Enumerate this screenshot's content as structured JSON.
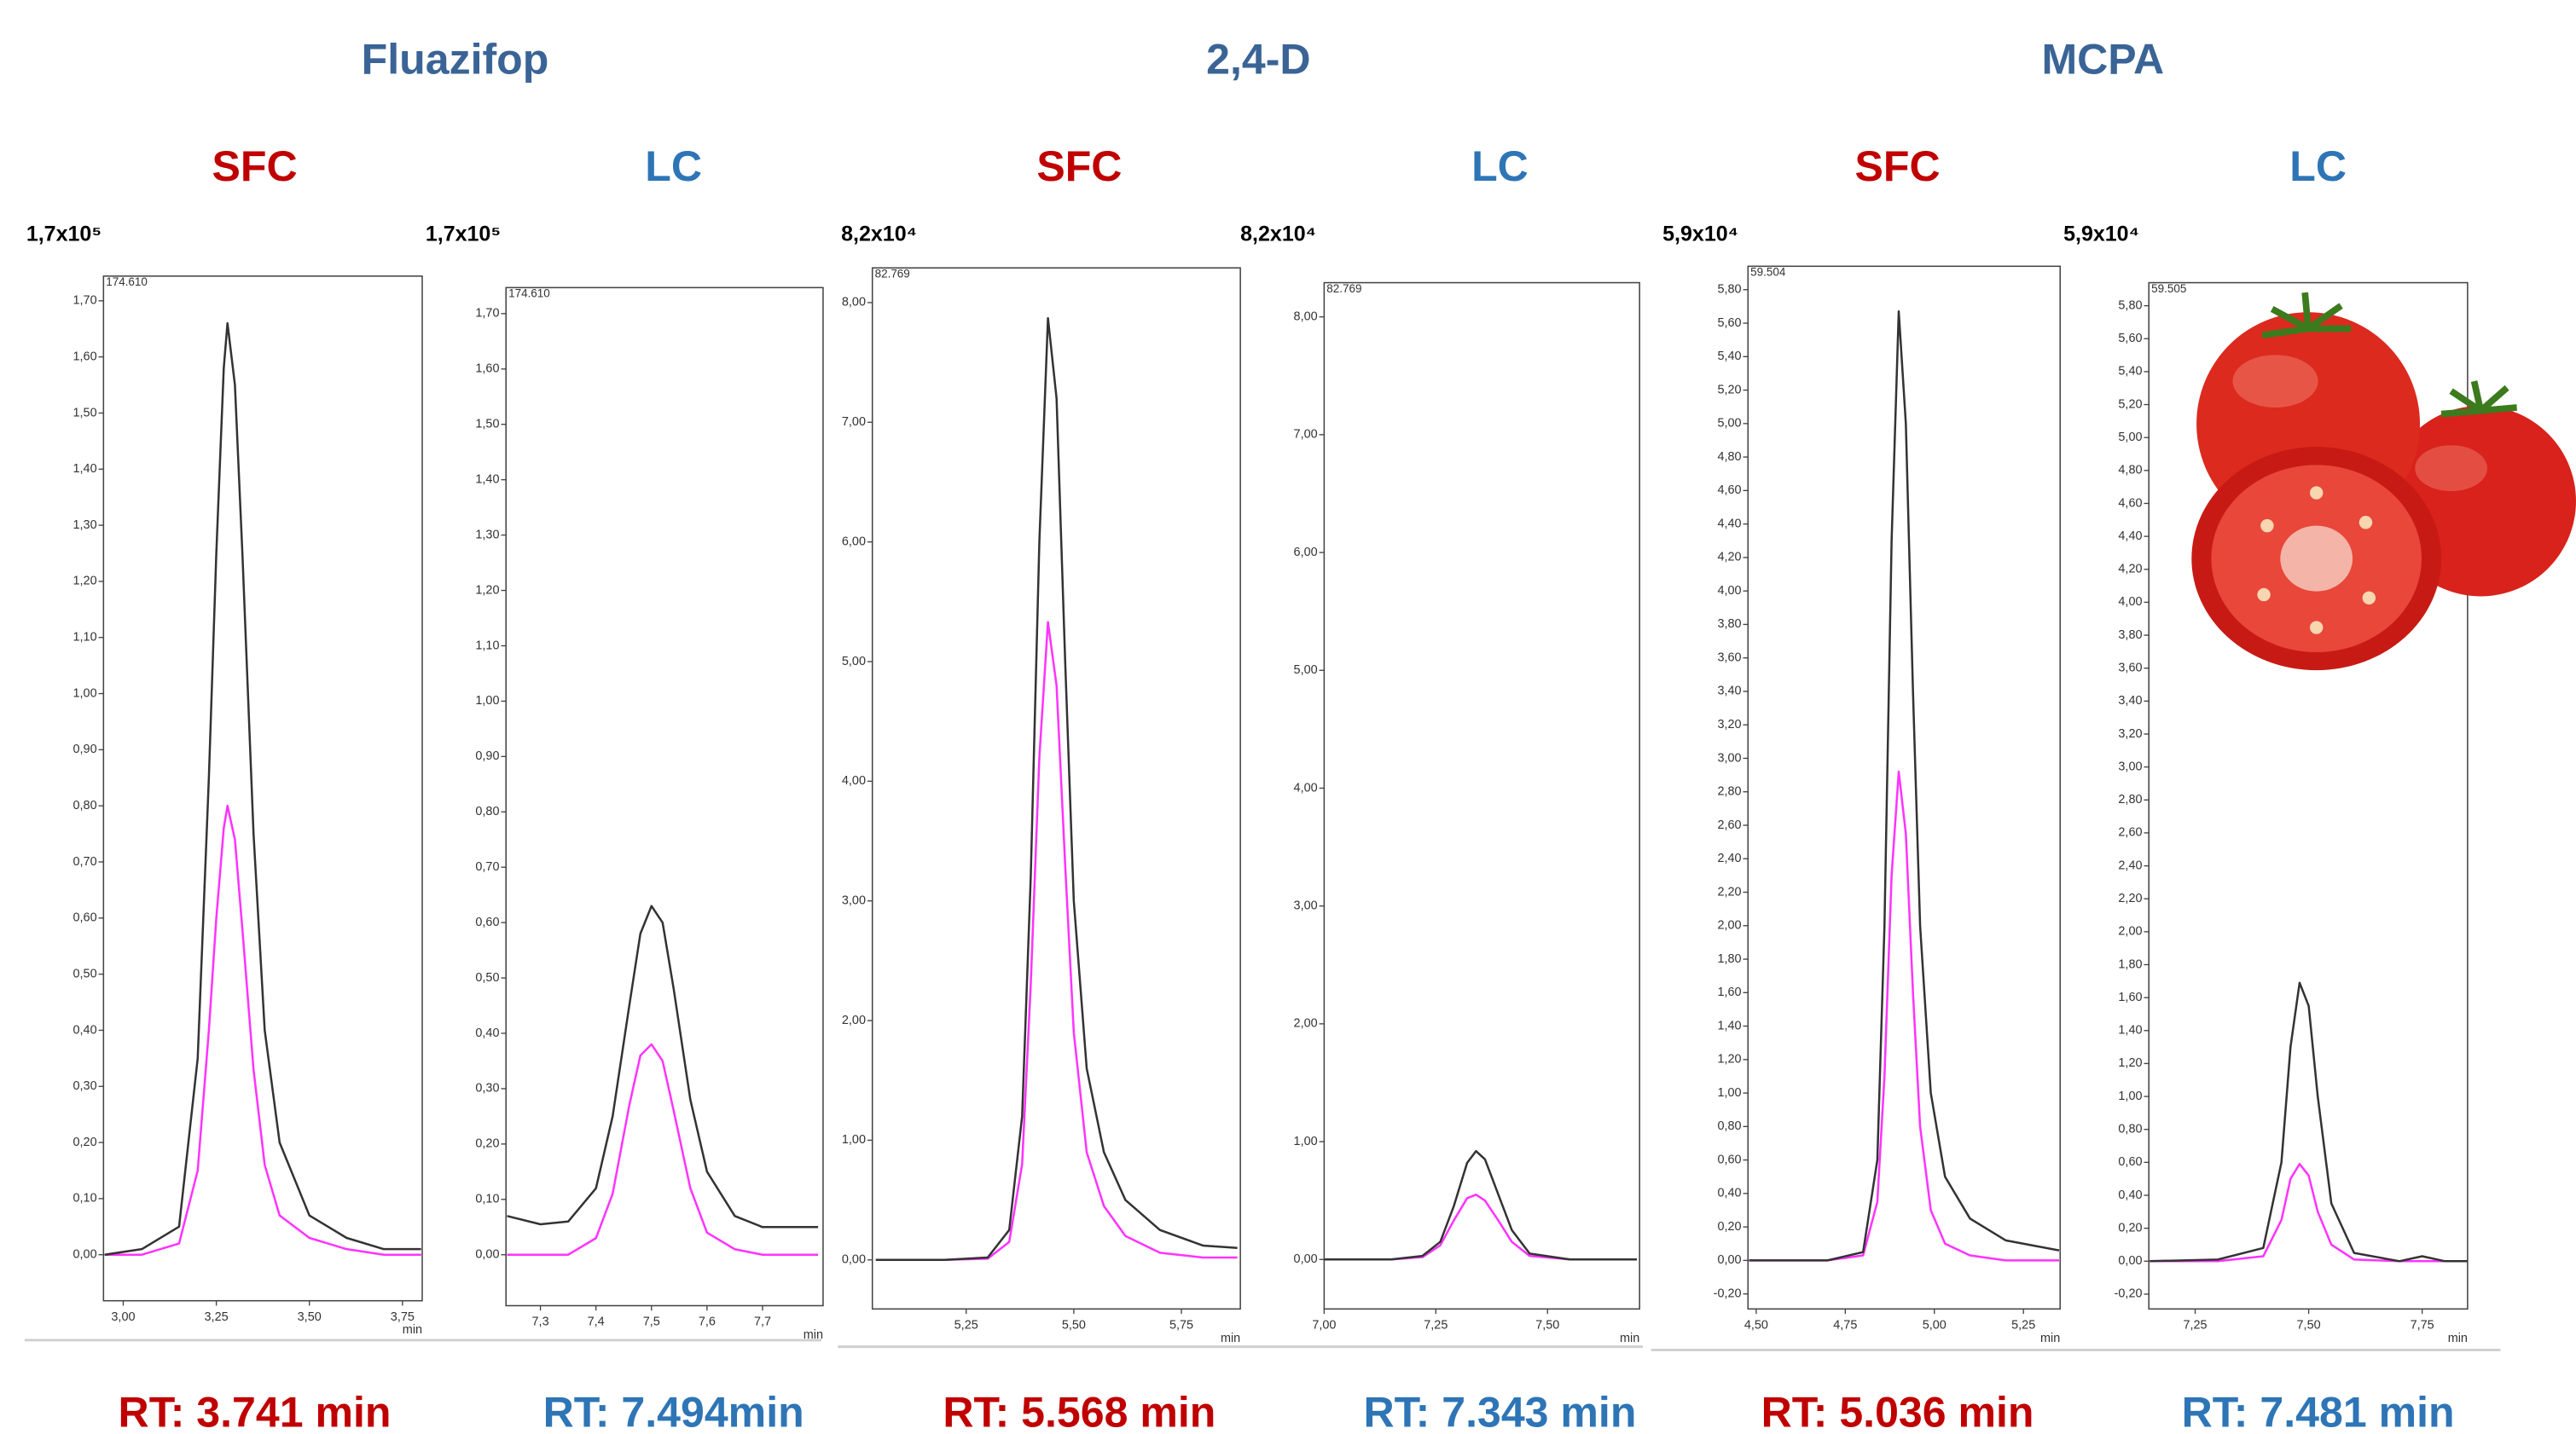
{
  "groups": [
    "Fluazifop",
    "2,4-D",
    "MCPA"
  ],
  "chart_data": [
    {
      "type": "line",
      "title": "SFC",
      "title_color": "#c00000",
      "scale_label": "1,7x10⁵",
      "max_label": "174.610",
      "xlabel": "min",
      "footer": "RT: 3.741 min",
      "xlim": [
        2.947,
        3.803
      ],
      "ylim": [
        -0.082,
        1.744
      ],
      "xticks": [
        {
          "value": 3.0,
          "label": "3,00"
        },
        {
          "value": 3.25,
          "label": "3,25"
        },
        {
          "value": 3.5,
          "label": "3,50"
        },
        {
          "value": 3.75,
          "label": "3,75"
        }
      ],
      "yticks": [
        {
          "value": 0,
          "label": "0,00"
        },
        {
          "value": 0.1,
          "label": "0,10"
        },
        {
          "value": 0.2,
          "label": "0,20"
        },
        {
          "value": 0.3,
          "label": "0,30"
        },
        {
          "value": 0.4,
          "label": "0,40"
        },
        {
          "value": 0.5,
          "label": "0,50"
        },
        {
          "value": 0.6,
          "label": "0,60"
        },
        {
          "value": 0.7,
          "label": "0,70"
        },
        {
          "value": 0.8,
          "label": "0,80"
        },
        {
          "value": 0.9,
          "label": "0,90"
        },
        {
          "value": 1.0,
          "label": "1,00"
        },
        {
          "value": 1.1,
          "label": "1,10"
        },
        {
          "value": 1.2,
          "label": "1,20"
        },
        {
          "value": 1.3,
          "label": "1,30"
        },
        {
          "value": 1.4,
          "label": "1,40"
        },
        {
          "value": 1.5,
          "label": "1,50"
        },
        {
          "value": 1.6,
          "label": "1,60"
        },
        {
          "value": 1.7,
          "label": "1,70"
        }
      ],
      "x": [
        2.95,
        3.05,
        3.15,
        3.2,
        3.23,
        3.25,
        3.27,
        3.28,
        3.3,
        3.32,
        3.35,
        3.38,
        3.42,
        3.5,
        3.6,
        3.7,
        3.8
      ],
      "series": [
        {
          "color": "#333333",
          "values": [
            0,
            0.01,
            0.05,
            0.35,
            0.85,
            1.25,
            1.58,
            1.66,
            1.55,
            1.25,
            0.75,
            0.4,
            0.2,
            0.07,
            0.03,
            0.01,
            0.01
          ]
        },
        {
          "color": "#ff33ff",
          "values": [
            0,
            0,
            0.02,
            0.15,
            0.4,
            0.6,
            0.76,
            0.8,
            0.74,
            0.58,
            0.33,
            0.16,
            0.07,
            0.03,
            0.01,
            0,
            0
          ]
        }
      ]
    },
    {
      "type": "line",
      "title": "LC",
      "title_color": "#2e75b6",
      "scale_label": "1,7x10⁵",
      "max_label": "174.610",
      "xlabel": "min",
      "footer": "RT: 7.494min",
      "xlim": [
        7.238,
        7.809
      ],
      "ylim": [
        -0.092,
        1.747
      ],
      "xticks": [
        {
          "value": 7.3,
          "label": "7,3"
        },
        {
          "value": 7.4,
          "label": "7,4"
        },
        {
          "value": 7.5,
          "label": "7,5"
        },
        {
          "value": 7.6,
          "label": "7,6"
        },
        {
          "value": 7.7,
          "label": "7,7"
        }
      ],
      "yticks": [
        {
          "value": 0,
          "label": "0,00"
        },
        {
          "value": 0.1,
          "label": "0,10"
        },
        {
          "value": 0.2,
          "label": "0,20"
        },
        {
          "value": 0.3,
          "label": "0,30"
        },
        {
          "value": 0.4,
          "label": "0,40"
        },
        {
          "value": 0.5,
          "label": "0,50"
        },
        {
          "value": 0.6,
          "label": "0,60"
        },
        {
          "value": 0.7,
          "label": "0,70"
        },
        {
          "value": 0.8,
          "label": "0,80"
        },
        {
          "value": 0.9,
          "label": "0,90"
        },
        {
          "value": 1.0,
          "label": "1,00"
        },
        {
          "value": 1.1,
          "label": "1,10"
        },
        {
          "value": 1.2,
          "label": "1,20"
        },
        {
          "value": 1.3,
          "label": "1,30"
        },
        {
          "value": 1.4,
          "label": "1,40"
        },
        {
          "value": 1.5,
          "label": "1,50"
        },
        {
          "value": 1.6,
          "label": "1,60"
        },
        {
          "value": 1.7,
          "label": "1,70"
        }
      ],
      "x": [
        7.24,
        7.3,
        7.35,
        7.4,
        7.43,
        7.46,
        7.48,
        7.5,
        7.52,
        7.54,
        7.57,
        7.6,
        7.65,
        7.7,
        7.8
      ],
      "series": [
        {
          "color": "#333333",
          "values": [
            0.07,
            0.055,
            0.06,
            0.12,
            0.25,
            0.45,
            0.58,
            0.63,
            0.6,
            0.48,
            0.28,
            0.15,
            0.07,
            0.05,
            0.05
          ]
        },
        {
          "color": "#ff33ff",
          "values": [
            0,
            0,
            0,
            0.03,
            0.11,
            0.27,
            0.36,
            0.38,
            0.35,
            0.26,
            0.12,
            0.04,
            0.01,
            0,
            0
          ]
        }
      ]
    },
    {
      "type": "line",
      "title": "SFC",
      "title_color": "#c00000",
      "scale_label": "8,2x10⁴",
      "max_label": "82.769",
      "xlabel": "min",
      "footer": "RT: 5.568 min",
      "xlim": [
        5.032,
        5.887
      ],
      "ylim": [
        -0.41,
        8.29
      ],
      "xticks": [
        {
          "value": 5.25,
          "label": "5,25"
        },
        {
          "value": 5.5,
          "label": "5,50"
        },
        {
          "value": 5.75,
          "label": "5,75"
        }
      ],
      "yticks": [
        {
          "value": 0,
          "label": "0,00"
        },
        {
          "value": 1,
          "label": "1,00"
        },
        {
          "value": 2,
          "label": "2,00"
        },
        {
          "value": 3,
          "label": "3,00"
        },
        {
          "value": 4,
          "label": "4,00"
        },
        {
          "value": 5,
          "label": "5,00"
        },
        {
          "value": 6,
          "label": "6,00"
        },
        {
          "value": 7,
          "label": "7,00"
        },
        {
          "value": 8,
          "label": "8,00"
        }
      ],
      "x": [
        5.04,
        5.2,
        5.3,
        5.35,
        5.38,
        5.4,
        5.42,
        5.44,
        5.46,
        5.48,
        5.5,
        5.53,
        5.57,
        5.62,
        5.7,
        5.8,
        5.88
      ],
      "series": [
        {
          "color": "#333333",
          "values": [
            0,
            0,
            0.02,
            0.25,
            1.2,
            3.2,
            6.0,
            7.87,
            7.2,
            5.0,
            3.0,
            1.6,
            0.9,
            0.5,
            0.25,
            0.12,
            0.1
          ]
        },
        {
          "color": "#ff33ff",
          "values": [
            0,
            0,
            0.01,
            0.15,
            0.8,
            2.3,
            4.2,
            5.33,
            4.8,
            3.3,
            1.9,
            0.9,
            0.45,
            0.2,
            0.06,
            0.02,
            0.02
          ]
        }
      ]
    },
    {
      "type": "line",
      "title": "LC",
      "title_color": "#2e75b6",
      "scale_label": "8,2x10⁴",
      "max_label": "82.769",
      "xlabel": "min",
      "footer": "RT: 7.343 min",
      "xlim": [
        7.0,
        7.706
      ],
      "ylim": [
        -0.42,
        8.29
      ],
      "xticks": [
        {
          "value": 7.0,
          "label": "7,00"
        },
        {
          "value": 7.25,
          "label": "7,25"
        },
        {
          "value": 7.5,
          "label": "7,50"
        }
      ],
      "yticks": [
        {
          "value": 0,
          "label": "0,00"
        },
        {
          "value": 1,
          "label": "1,00"
        },
        {
          "value": 2,
          "label": "2,00"
        },
        {
          "value": 3,
          "label": "3,00"
        },
        {
          "value": 4,
          "label": "4,00"
        },
        {
          "value": 5,
          "label": "5,00"
        },
        {
          "value": 6,
          "label": "6,00"
        },
        {
          "value": 7,
          "label": "7,00"
        },
        {
          "value": 8,
          "label": "8,00"
        }
      ],
      "x": [
        7.0,
        7.15,
        7.22,
        7.26,
        7.29,
        7.32,
        7.34,
        7.36,
        7.39,
        7.42,
        7.46,
        7.55,
        7.7
      ],
      "series": [
        {
          "color": "#333333",
          "values": [
            0,
            0,
            0.03,
            0.15,
            0.45,
            0.82,
            0.92,
            0.85,
            0.55,
            0.25,
            0.05,
            0,
            0
          ]
        },
        {
          "color": "#ff33ff",
          "values": [
            0,
            0,
            0.02,
            0.12,
            0.33,
            0.52,
            0.55,
            0.5,
            0.33,
            0.15,
            0.03,
            0,
            0
          ]
        }
      ]
    },
    {
      "type": "line",
      "title": "SFC",
      "title_color": "#c00000",
      "scale_label": "5,9x10⁴",
      "max_label": "59.504",
      "xlabel": "min",
      "footer": "RT: 5.036 min",
      "xlim": [
        4.477,
        5.353
      ],
      "ylim": [
        -0.29,
        5.94
      ],
      "xticks": [
        {
          "value": 4.5,
          "label": "4,50"
        },
        {
          "value": 4.75,
          "label": "4,75"
        },
        {
          "value": 5.0,
          "label": "5,00"
        },
        {
          "value": 5.25,
          "label": "5,25"
        }
      ],
      "yticks": [
        {
          "value": -0.2,
          "label": "-0,20"
        },
        {
          "value": 0,
          "label": "0,00"
        },
        {
          "value": 0.2,
          "label": "0,20"
        },
        {
          "value": 0.4,
          "label": "0,40"
        },
        {
          "value": 0.6,
          "label": "0,60"
        },
        {
          "value": 0.8,
          "label": "0,80"
        },
        {
          "value": 1.0,
          "label": "1,00"
        },
        {
          "value": 1.2,
          "label": "1,20"
        },
        {
          "value": 1.4,
          "label": "1,40"
        },
        {
          "value": 1.6,
          "label": "1,60"
        },
        {
          "value": 1.8,
          "label": "1,80"
        },
        {
          "value": 2.0,
          "label": "2,00"
        },
        {
          "value": 2.2,
          "label": "2,20"
        },
        {
          "value": 2.4,
          "label": "2,40"
        },
        {
          "value": 2.6,
          "label": "2,60"
        },
        {
          "value": 2.8,
          "label": "2,80"
        },
        {
          "value": 3.0,
          "label": "3,00"
        },
        {
          "value": 3.2,
          "label": "3,20"
        },
        {
          "value": 3.4,
          "label": "3,40"
        },
        {
          "value": 3.6,
          "label": "3,60"
        },
        {
          "value": 3.8,
          "label": "3,80"
        },
        {
          "value": 4.0,
          "label": "4,00"
        },
        {
          "value": 4.2,
          "label": "4,20"
        },
        {
          "value": 4.4,
          "label": "4,40"
        },
        {
          "value": 4.6,
          "label": "4,60"
        },
        {
          "value": 4.8,
          "label": "4,80"
        },
        {
          "value": 5.0,
          "label": "5,00"
        },
        {
          "value": 5.2,
          "label": "5,20"
        },
        {
          "value": 5.4,
          "label": "5,40"
        },
        {
          "value": 5.6,
          "label": "5,60"
        },
        {
          "value": 5.8,
          "label": "5,80"
        }
      ],
      "x": [
        4.48,
        4.7,
        4.8,
        4.84,
        4.86,
        4.88,
        4.9,
        4.92,
        4.94,
        4.96,
        4.99,
        5.03,
        5.1,
        5.2,
        5.35
      ],
      "series": [
        {
          "color": "#333333",
          "values": [
            0,
            0,
            0.05,
            0.6,
            2.0,
            4.3,
            5.67,
            5.0,
            3.4,
            2.0,
            1.0,
            0.5,
            0.25,
            0.12,
            0.06
          ]
        },
        {
          "color": "#ff33ff",
          "values": [
            0,
            0,
            0.03,
            0.35,
            1.1,
            2.3,
            2.92,
            2.55,
            1.6,
            0.8,
            0.3,
            0.1,
            0.03,
            0,
            0
          ]
        }
      ]
    },
    {
      "type": "line",
      "title": "LC",
      "title_color": "#2e75b6",
      "scale_label": "5,9x10⁴",
      "max_label": "59.505",
      "xlabel": "min",
      "footer": "RT: 7.481 min",
      "xlim": [
        7.148,
        7.85
      ],
      "ylim": [
        -0.29,
        5.94
      ],
      "xticks": [
        {
          "value": 7.25,
          "label": "7,25"
        },
        {
          "value": 7.5,
          "label": "7,50"
        },
        {
          "value": 7.75,
          "label": "7,75"
        }
      ],
      "yticks": [
        {
          "value": -0.2,
          "label": "-0,20"
        },
        {
          "value": 0,
          "label": "0,00"
        },
        {
          "value": 0.2,
          "label": "0,20"
        },
        {
          "value": 0.4,
          "label": "0,40"
        },
        {
          "value": 0.6,
          "label": "0,60"
        },
        {
          "value": 0.8,
          "label": "0,80"
        },
        {
          "value": 1.0,
          "label": "1,00"
        },
        {
          "value": 1.2,
          "label": "1,20"
        },
        {
          "value": 1.4,
          "label": "1,40"
        },
        {
          "value": 1.6,
          "label": "1,60"
        },
        {
          "value": 1.8,
          "label": "1,80"
        },
        {
          "value": 2.0,
          "label": "2,00"
        },
        {
          "value": 2.2,
          "label": "2,20"
        },
        {
          "value": 2.4,
          "label": "2,40"
        },
        {
          "value": 2.6,
          "label": "2,60"
        },
        {
          "value": 2.8,
          "label": "2,80"
        },
        {
          "value": 3.0,
          "label": "3,00"
        },
        {
          "value": 3.2,
          "label": "3,20"
        },
        {
          "value": 3.4,
          "label": "3,40"
        },
        {
          "value": 3.6,
          "label": "3,60"
        },
        {
          "value": 3.8,
          "label": "3,80"
        },
        {
          "value": 4.0,
          "label": "4,00"
        },
        {
          "value": 4.2,
          "label": "4,20"
        },
        {
          "value": 4.4,
          "label": "4,40"
        },
        {
          "value": 4.6,
          "label": "4,60"
        },
        {
          "value": 4.8,
          "label": "4,80"
        },
        {
          "value": 5.0,
          "label": "5,00"
        },
        {
          "value": 5.2,
          "label": "5,20"
        },
        {
          "value": 5.4,
          "label": "5,40"
        },
        {
          "value": 5.6,
          "label": "5,60"
        },
        {
          "value": 5.8,
          "label": "5,80"
        }
      ],
      "x": [
        7.15,
        7.3,
        7.4,
        7.44,
        7.46,
        7.48,
        7.5,
        7.52,
        7.55,
        7.6,
        7.7,
        7.75,
        7.8,
        7.85
      ],
      "series": [
        {
          "color": "#333333",
          "values": [
            0,
            0.01,
            0.08,
            0.6,
            1.3,
            1.69,
            1.55,
            1.0,
            0.35,
            0.05,
            0,
            0.03,
            0,
            0
          ]
        },
        {
          "color": "#ff33ff",
          "values": [
            0,
            0,
            0.03,
            0.25,
            0.5,
            0.59,
            0.52,
            0.3,
            0.1,
            0.01,
            0,
            0,
            0,
            0
          ]
        }
      ]
    }
  ]
}
